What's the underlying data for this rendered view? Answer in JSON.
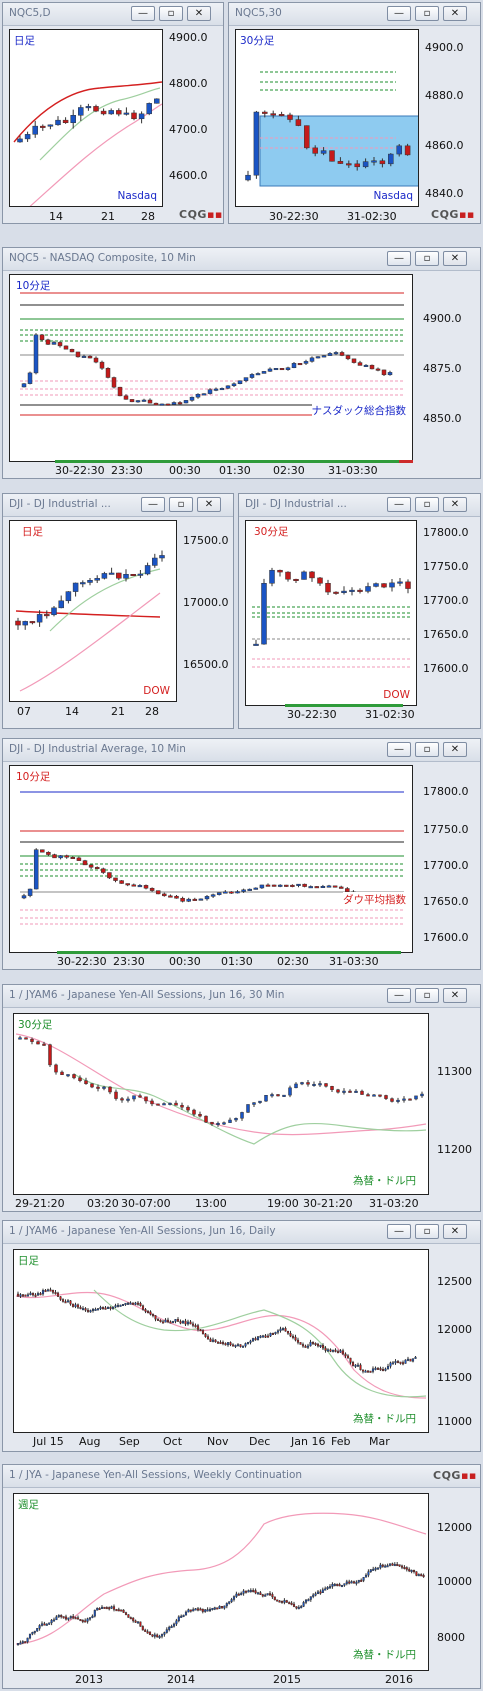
{
  "windows": [
    {
      "id": "nq_d",
      "title": "NQC5,D",
      "period": "日足",
      "source": "Nasdaq",
      "yticks": [
        "4900.0",
        "4800.0",
        "4700.0",
        "4600.0"
      ],
      "xticks": [
        "14",
        "21",
        "28"
      ]
    },
    {
      "id": "nq_30",
      "title": "NQC5,30",
      "period": "30分足",
      "source": "Nasdaq",
      "yticks": [
        "4900.0",
        "4880.0",
        "4860.0",
        "4840.0"
      ],
      "xticks": [
        "30-22:30",
        "31-02:30"
      ]
    },
    {
      "id": "nq_10",
      "title": "NQC5 - NASDAQ Composite, 10 Min",
      "period": "10分足",
      "source": "ナスダック総合指数",
      "yticks": [
        "4900.0",
        "4875.0",
        "4850.0"
      ],
      "xticks": [
        "30-22:30",
        "23:30",
        "00:30",
        "01:30",
        "02:30",
        "31-03:30"
      ]
    },
    {
      "id": "dji_d",
      "title": "DJI - DJ Industrial ...",
      "period": "日足",
      "source": "DOW",
      "yticks": [
        "17500.0",
        "17000.0",
        "16500.0"
      ],
      "xticks": [
        "07",
        "14",
        "21",
        "28"
      ]
    },
    {
      "id": "dji_30",
      "title": "DJI - DJ Industrial ...",
      "period": "30分足",
      "source": "DOW",
      "yticks": [
        "17800.0",
        "17750.0",
        "17700.0",
        "17650.0",
        "17600.0"
      ],
      "xticks": [
        "30-22:30",
        "31-02:30"
      ]
    },
    {
      "id": "dji_10",
      "title": "DJI - DJ Industrial Average, 10 Min",
      "period": "10分足",
      "source": "ダウ平均指数",
      "yticks": [
        "17800.0",
        "17750.0",
        "17700.0",
        "17650.0",
        "17600.0"
      ],
      "xticks": [
        "30-22:30",
        "23:30",
        "00:30",
        "01:30",
        "02:30",
        "31-03:30"
      ]
    },
    {
      "id": "jy_30",
      "title": "1 / JYAM6 - Japanese Yen-All Sessions, Jun 16, 30 Min",
      "period": "30分足",
      "source": "為替・ドル円",
      "yticks": [
        "11300",
        "11200"
      ],
      "xticks": [
        "29-21:20",
        "03:20",
        "30-07:00",
        "13:00",
        "19:00",
        "30-21:20",
        "31-03:20"
      ]
    },
    {
      "id": "jy_d",
      "title": "1 / JYAM6 - Japanese Yen-All Sessions, Jun 16, Daily",
      "period": "日足",
      "source": "為替・ドル円",
      "yticks": [
        "12500",
        "12000",
        "11500",
        "11000"
      ],
      "xticks": [
        "Jul 15",
        "Aug",
        "Sep",
        "Oct",
        "Nov",
        "Dec",
        "Jan 16",
        "Feb",
        "Mar"
      ]
    },
    {
      "id": "jya_w",
      "title": "1 / JYA - Japanese Yen-All Sessions, Weekly Continuation",
      "period": "週足",
      "source": "為替・ドル円",
      "yticks": [
        "12000",
        "10000",
        "8000"
      ],
      "xticks": [
        "2013",
        "2014",
        "2015",
        "2016"
      ]
    }
  ],
  "buttons": {
    "minimize": "—",
    "restore": "▫",
    "close": "✕"
  },
  "logo": {
    "text": "CQG",
    "mark": "▪▪"
  },
  "colors": {
    "up": "#1a54c4",
    "down": "#c41a1a",
    "ma_light": "#9fcf9f",
    "ma_pink": "#f29ab8",
    "period_blue": "#1a28c8",
    "period_red": "#d42020",
    "period_green": "#1e8f2c",
    "source_blue": "#1a28c8",
    "source_red": "#d42020",
    "source_green": "#1e8f2c",
    "selection": "#8ecbf0"
  }
}
